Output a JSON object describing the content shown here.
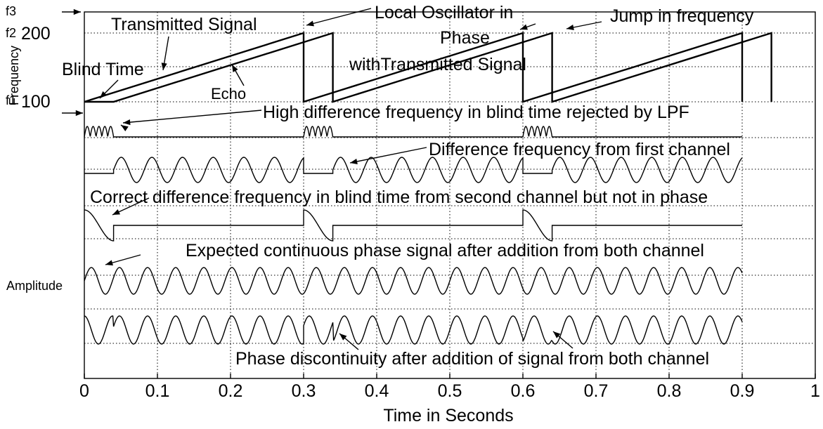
{
  "chart_data": {
    "type": "line",
    "xlabel": "Time in Seconds",
    "ylabel_top": "Frequency",
    "ylabel_bottom": "Amplitude",
    "xlim": [
      0,
      1
    ],
    "x_ticks": [
      "0",
      "0.1",
      "0.2",
      "0.3",
      "0.4",
      "0.5",
      "0.6",
      "0.7",
      "0.8",
      "0.9",
      "1"
    ],
    "freq_ticks": [
      {
        "label": "f3",
        "value": null
      },
      {
        "label": "200",
        "prefix": "f2",
        "value": 200
      },
      {
        "label": "100",
        "prefix": "f1",
        "value": 100
      }
    ],
    "grid": true,
    "sweep_period_s": 0.3,
    "blind_time_s": 0.04,
    "sweep_end_s": 0.9,
    "freq_range": [
      100,
      200
    ],
    "series": [
      {
        "name": "Transmitted Signal",
        "kind": "sawtooth",
        "x_start": 0,
        "x_end": 0.9,
        "y_start": 100,
        "y_end": 200
      },
      {
        "name": "Echo",
        "kind": "sawtooth",
        "x_start": 0.04,
        "x_end": 0.94,
        "y_start": 100,
        "y_end": 200
      },
      {
        "name": "Difference frequency from first channel",
        "kind": "sine_with_gaps",
        "cycles_per_period": 7
      },
      {
        "name": "Correct difference frequency in blind time from second channel",
        "kind": "pulses"
      },
      {
        "name": "Expected continuous phase signal",
        "kind": "sine",
        "cycles": 24
      },
      {
        "name": "Phase discontinuity after addition",
        "kind": "sine_with_jumps",
        "cycles": 24
      }
    ],
    "annotations": [
      "Transmitted Signal",
      "Local Oscillator in",
      "Phase",
      "withTransmitted Signal",
      "Jump in frequency",
      "Blind Time",
      "Echo",
      "High difference frequency in blind time rejected by LPF",
      "Difference frequency from first channel",
      "Correct difference frequency in blind time from second channel  but not in phase",
      "Expected continuous phase signal after addition from both channel",
      "Phase discontinuity after addition of signal from both channel"
    ]
  }
}
